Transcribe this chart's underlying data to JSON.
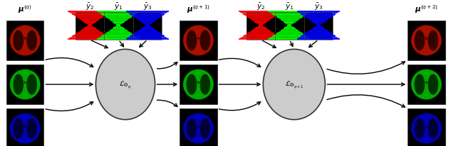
{
  "fig_width": 6.4,
  "fig_height": 2.07,
  "dpi": 100,
  "background_color": "#ffffff",
  "labels": {
    "mu_q": "$\\boldsymbol{\\mu}^{(q)}$",
    "mu_q1": "$\\boldsymbol{\\mu}^{(q+1)}$",
    "mu_q2": "$\\boldsymbol{\\mu}^{(q+2)}$",
    "y2": "$\\bar{y}_2$",
    "y1": "$\\bar{y}_1$",
    "y3": "$\\bar{y}_3$",
    "loss_q": "$\\mathcal{L}_{\\Theta_q}$",
    "loss_q1": "$\\mathcal{L}_{\\Theta_{q+1}}$"
  }
}
